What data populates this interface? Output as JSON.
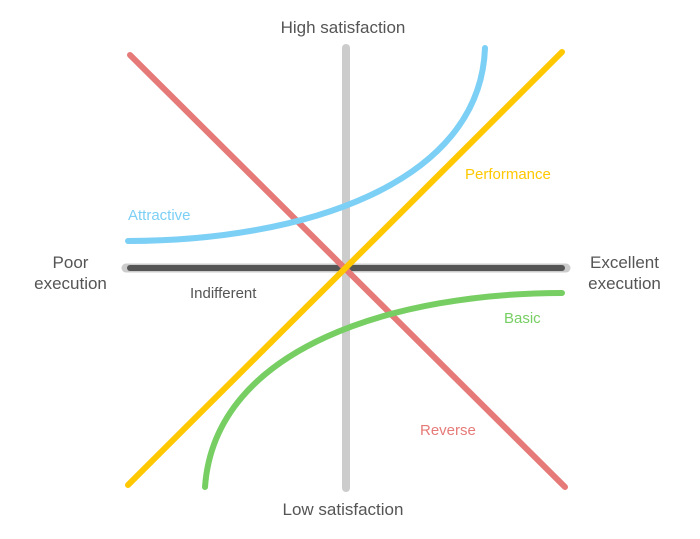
{
  "axes": {
    "top": "High satisfaction",
    "bottom": "Low satisfaction",
    "left_line1": "Poor",
    "left_line2": "execution",
    "right_line1": "Excellent",
    "right_line2": "execution"
  },
  "curves": {
    "attractive": {
      "label": "Attractive",
      "color": "#7ccff5"
    },
    "performance": {
      "label": "Performance",
      "color": "#ffc800"
    },
    "indifferent": {
      "label": "Indifferent",
      "color": "#555555"
    },
    "basic": {
      "label": "Basic",
      "color": "#77cf63"
    },
    "reverse": {
      "label": "Reverse",
      "color": "#e57a78"
    }
  },
  "colors": {
    "axis": "#cccccc"
  }
}
